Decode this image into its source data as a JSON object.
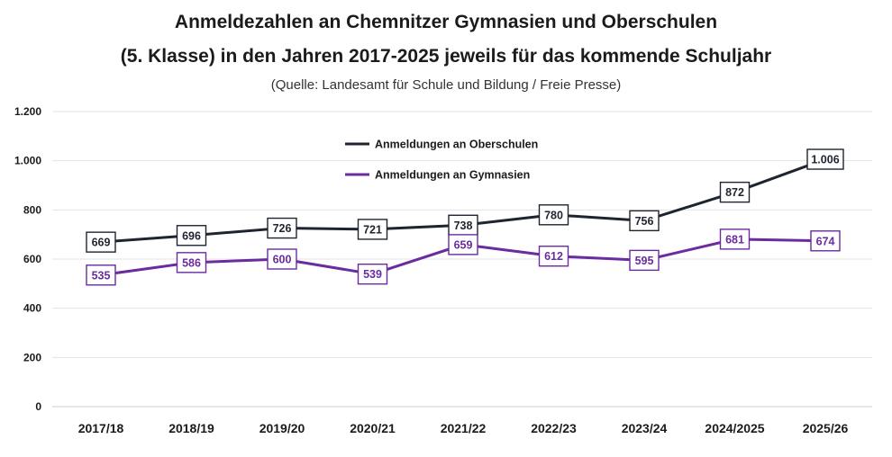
{
  "colors": {
    "oberschulen": "#1e2530",
    "gymnasien": "#6a2c9e",
    "grid": "#e3e3e3",
    "axis": "#cfcfcf"
  },
  "chart_data": {
    "type": "line",
    "title_line1": "Anmeldezahlen an Chemnitzer Gymnasien und Oberschulen",
    "title_line2": "(5. Klasse) in den Jahren 2017-2025 jeweils für das kommende Schuljahr",
    "subtitle": "(Quelle: Landesamt für Schule und Bildung / Freie Presse)",
    "xlabel": "",
    "ylabel": "",
    "ylim": [
      0,
      1200
    ],
    "yticks": [
      0,
      200,
      400,
      600,
      800,
      1000,
      1200
    ],
    "ytick_labels": [
      "0",
      "200",
      "400",
      "600",
      "800",
      "1.000",
      "1.200"
    ],
    "grid": true,
    "legend_position": "top-center",
    "categories": [
      "2017/18",
      "2018/19",
      "2019/20",
      "2020/21",
      "2021/22",
      "2022/23",
      "2023/24",
      "2024/2025",
      "2025/26"
    ],
    "series": [
      {
        "name": "Anmeldungen an Oberschulen",
        "color_key": "oberschulen",
        "values": [
          669,
          696,
          726,
          721,
          738,
          780,
          756,
          872,
          1006
        ],
        "labels": [
          "669",
          "696",
          "726",
          "721",
          "738",
          "780",
          "756",
          "872",
          "1.006"
        ]
      },
      {
        "name": "Anmeldungen an Gymnasien",
        "color_key": "gymnasien",
        "values": [
          535,
          586,
          600,
          539,
          659,
          612,
          595,
          681,
          674
        ],
        "labels": [
          "535",
          "586",
          "600",
          "539",
          "659",
          "612",
          "595",
          "681",
          "674"
        ]
      }
    ]
  }
}
